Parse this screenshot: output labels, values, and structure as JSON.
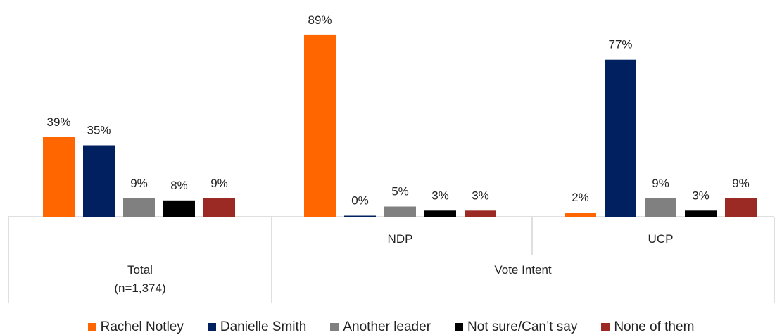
{
  "chart_data": {
    "type": "bar",
    "title": "",
    "xlabel": "",
    "ylabel": "",
    "ylim": [
      0,
      100
    ],
    "groups": [
      {
        "label": "Total",
        "sublabel": "(n=1,374)",
        "parent": ""
      },
      {
        "label": "NDP",
        "sublabel": "",
        "parent": "Vote Intent"
      },
      {
        "label": "UCP",
        "sublabel": "",
        "parent": "Vote Intent"
      }
    ],
    "parent_labels": [
      "Vote Intent"
    ],
    "series": [
      {
        "name": "Rachel Notley",
        "color": "#ff6600",
        "values": [
          39,
          89,
          2
        ],
        "labels": [
          "39%",
          "89%",
          "2%"
        ]
      },
      {
        "name": "Danielle Smith",
        "color": "#002060",
        "values": [
          35,
          0,
          77
        ],
        "labels": [
          "35%",
          "0%",
          "77%"
        ]
      },
      {
        "name": "Another leader",
        "color": "#808080",
        "values": [
          9,
          5,
          9
        ],
        "labels": [
          "9%",
          "5%",
          "9%"
        ]
      },
      {
        "name": "Not sure/Can’t say",
        "color": "#000000",
        "values": [
          8,
          3,
          3
        ],
        "labels": [
          "8%",
          "3%",
          "3%"
        ]
      },
      {
        "name": "None of them",
        "color": "#9b2a25",
        "values": [
          9,
          3,
          9
        ],
        "labels": [
          "9%",
          "3%",
          "9%"
        ]
      }
    ],
    "legend_position": "bottom",
    "grid": false
  }
}
